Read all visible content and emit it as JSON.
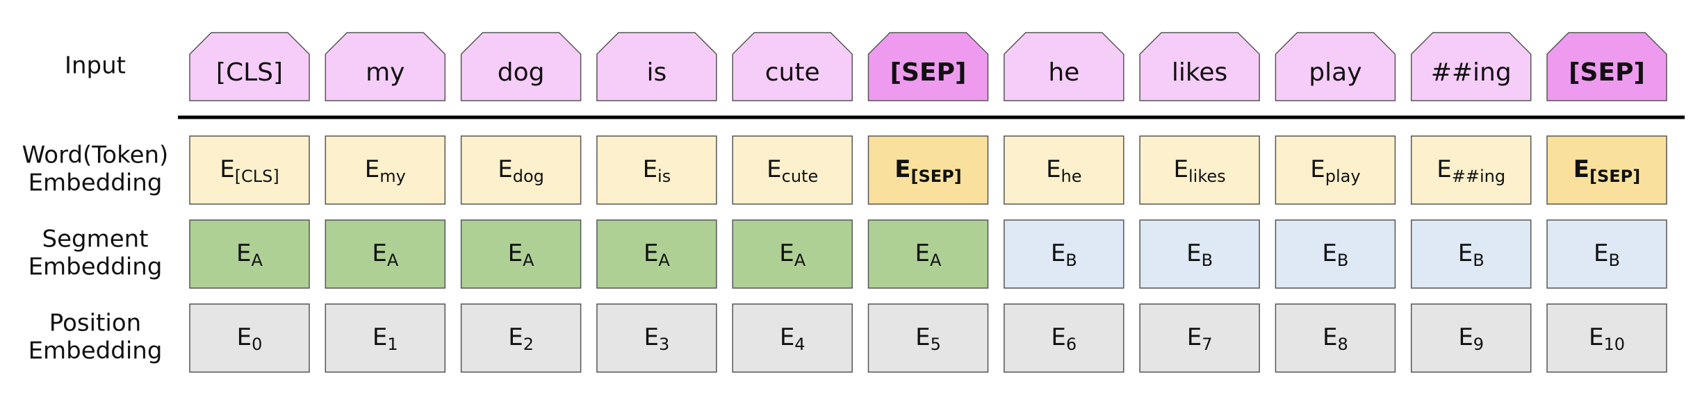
{
  "rows": [
    {
      "label": [
        "Input"
      ],
      "kind": "token",
      "cells": [
        {
          "text": "[CLS]",
          "color": "#f6cdf8",
          "bold": false
        },
        {
          "text": "my",
          "color": "#f6cdf8",
          "bold": false
        },
        {
          "text": "dog",
          "color": "#f6cdf8",
          "bold": false
        },
        {
          "text": "is",
          "color": "#f6cdf8",
          "bold": false
        },
        {
          "text": "cute",
          "color": "#f6cdf8",
          "bold": false
        },
        {
          "text": "[SEP]",
          "color": "#ee9bef",
          "bold": true
        },
        {
          "text": "he",
          "color": "#f6cdf8",
          "bold": false
        },
        {
          "text": "likes",
          "color": "#f6cdf8",
          "bold": false
        },
        {
          "text": "play",
          "color": "#f6cdf8",
          "bold": false
        },
        {
          "text": "##ing",
          "color": "#f6cdf8",
          "bold": false
        },
        {
          "text": "[SEP]",
          "color": "#ee9bef",
          "bold": true
        }
      ]
    },
    {
      "label": [
        "Word(Token)",
        "Embedding"
      ],
      "kind": "embedding",
      "cells": [
        {
          "base": "E",
          "sub": "[CLS]",
          "color": "#fcf1cc",
          "bold": false
        },
        {
          "base": "E",
          "sub": "my",
          "color": "#fcf1cc",
          "bold": false
        },
        {
          "base": "E",
          "sub": "dog",
          "color": "#fcf1cc",
          "bold": false
        },
        {
          "base": "E",
          "sub": "is",
          "color": "#fcf1cc",
          "bold": false
        },
        {
          "base": "E",
          "sub": "cute",
          "color": "#fcf1cc",
          "bold": false
        },
        {
          "base": "E",
          "sub": "[SEP]",
          "color": "#f9e19d",
          "bold": true
        },
        {
          "base": "E",
          "sub": "he",
          "color": "#fcf1cc",
          "bold": false
        },
        {
          "base": "E",
          "sub": "likes",
          "color": "#fcf1cc",
          "bold": false
        },
        {
          "base": "E",
          "sub": "play",
          "color": "#fcf1cc",
          "bold": false
        },
        {
          "base": "E",
          "sub": "##ing",
          "color": "#fcf1cc",
          "bold": false
        },
        {
          "base": "E",
          "sub": "[SEP]",
          "color": "#f9e19d",
          "bold": true
        }
      ]
    },
    {
      "label": [
        "Segment",
        "Embedding"
      ],
      "kind": "embedding",
      "cells": [
        {
          "base": "E",
          "sub": "A",
          "color": "#aed095",
          "bold": false
        },
        {
          "base": "E",
          "sub": "A",
          "color": "#aed095",
          "bold": false
        },
        {
          "base": "E",
          "sub": "A",
          "color": "#aed095",
          "bold": false
        },
        {
          "base": "E",
          "sub": "A",
          "color": "#aed095",
          "bold": false
        },
        {
          "base": "E",
          "sub": "A",
          "color": "#aed095",
          "bold": false
        },
        {
          "base": "E",
          "sub": "A",
          "color": "#aed095",
          "bold": false
        },
        {
          "base": "E",
          "sub": "B",
          "color": "#dee9f5",
          "bold": false
        },
        {
          "base": "E",
          "sub": "B",
          "color": "#dee9f5",
          "bold": false
        },
        {
          "base": "E",
          "sub": "B",
          "color": "#dee9f5",
          "bold": false
        },
        {
          "base": "E",
          "sub": "B",
          "color": "#dee9f5",
          "bold": false
        },
        {
          "base": "E",
          "sub": "B",
          "color": "#dee9f5",
          "bold": false
        }
      ]
    },
    {
      "label": [
        "Position",
        "Embedding"
      ],
      "kind": "embedding",
      "cells": [
        {
          "base": "E",
          "sub": "0",
          "color": "#e5e5e5",
          "bold": false
        },
        {
          "base": "E",
          "sub": "1",
          "color": "#e5e5e5",
          "bold": false
        },
        {
          "base": "E",
          "sub": "2",
          "color": "#e5e5e5",
          "bold": false
        },
        {
          "base": "E",
          "sub": "3",
          "color": "#e5e5e5",
          "bold": false
        },
        {
          "base": "E",
          "sub": "4",
          "color": "#e5e5e5",
          "bold": false
        },
        {
          "base": "E",
          "sub": "5",
          "color": "#e5e5e5",
          "bold": false
        },
        {
          "base": "E",
          "sub": "6",
          "color": "#e5e5e5",
          "bold": false
        },
        {
          "base": "E",
          "sub": "7",
          "color": "#e5e5e5",
          "bold": false
        },
        {
          "base": "E",
          "sub": "8",
          "color": "#e5e5e5",
          "bold": false
        },
        {
          "base": "E",
          "sub": "9",
          "color": "#e5e5e5",
          "bold": false
        },
        {
          "base": "E",
          "sub": "10",
          "color": "#e5e5e5",
          "bold": false
        }
      ]
    }
  ]
}
